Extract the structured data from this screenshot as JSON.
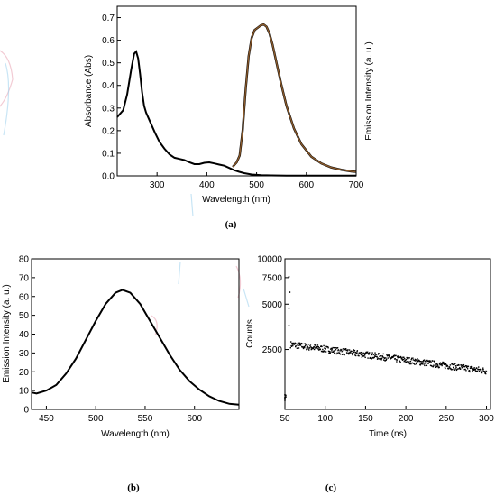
{
  "captions": {
    "a": "(a)",
    "b": "(b)",
    "c": "(c)"
  },
  "colors": {
    "absorbance": "#000000",
    "emission": "#8b5a2b",
    "decay_points": "#000000"
  },
  "chart_data": [
    {
      "id": "a",
      "type": "line",
      "xlabel": "Wavelength (nm)",
      "ylabel": "Absorbance (Abs)",
      "y2label": "Emission Intensity (a. u.)",
      "xlim": [
        220,
        700
      ],
      "ylim": [
        0,
        0.75
      ],
      "xticks": [
        300,
        400,
        500,
        600,
        700
      ],
      "yticks": [
        0.0,
        0.1,
        0.2,
        0.3,
        0.4,
        0.5,
        0.6,
        0.7
      ],
      "series": [
        {
          "axis": "left",
          "x": [
            220,
            232,
            240,
            248,
            254,
            258,
            262,
            266,
            270,
            274,
            278,
            282,
            288,
            296,
            305,
            315,
            325,
            335,
            345,
            355,
            365,
            375,
            385,
            395,
            405,
            415,
            425,
            435,
            445,
            455,
            465,
            475,
            490,
            510,
            530,
            560,
            600,
            640,
            680,
            700
          ],
          "y": [
            0.26,
            0.29,
            0.36,
            0.47,
            0.54,
            0.55,
            0.52,
            0.45,
            0.37,
            0.31,
            0.28,
            0.26,
            0.23,
            0.19,
            0.15,
            0.12,
            0.095,
            0.08,
            0.075,
            0.07,
            0.06,
            0.052,
            0.052,
            0.058,
            0.06,
            0.055,
            0.05,
            0.045,
            0.035,
            0.025,
            0.018,
            0.012,
            0.006,
            0.003,
            0.002,
            0.001,
            0.001,
            0.001,
            0.001,
            0.001
          ]
        },
        {
          "axis": "right",
          "x": [
            452,
            460,
            466,
            472,
            478,
            484,
            490,
            496,
            502,
            508,
            514,
            520,
            526,
            532,
            540,
            550,
            560,
            575,
            590,
            610,
            630,
            650,
            670,
            690,
            700
          ],
          "y": [
            0.04,
            0.06,
            0.09,
            0.2,
            0.38,
            0.53,
            0.61,
            0.645,
            0.655,
            0.665,
            0.67,
            0.66,
            0.63,
            0.58,
            0.5,
            0.4,
            0.31,
            0.21,
            0.14,
            0.085,
            0.055,
            0.037,
            0.027,
            0.02,
            0.018
          ]
        }
      ]
    },
    {
      "id": "b",
      "type": "line",
      "xlabel": "Wavelength (nm)",
      "ylabel": "Emission Intensity (a. u.)",
      "xlim": [
        435,
        645
      ],
      "ylim": [
        0,
        80
      ],
      "xticks": [
        450,
        500,
        550,
        600
      ],
      "yticks": [
        0,
        10,
        20,
        30,
        40,
        50,
        60,
        70,
        80
      ],
      "series": [
        {
          "x": [
            435,
            440,
            450,
            460,
            470,
            480,
            490,
            500,
            510,
            520,
            527,
            535,
            545,
            555,
            565,
            575,
            585,
            595,
            605,
            615,
            625,
            635,
            645
          ],
          "y": [
            9,
            8.5,
            10,
            13,
            19,
            27,
            37,
            47,
            56,
            62,
            63.5,
            62,
            56,
            47,
            38,
            29,
            21,
            15,
            10.5,
            7,
            4.5,
            3,
            2.5
          ]
        }
      ]
    },
    {
      "id": "c",
      "type": "scatter",
      "xlabel": "Time (ns)",
      "ylabel": "Counts",
      "xlim": [
        50,
        305
      ],
      "ylim": [
        1000,
        10000
      ],
      "yscale": "log",
      "xticks": [
        50,
        100,
        150,
        200,
        250,
        300
      ],
      "yticks": [
        2500,
        5000,
        7500,
        10000
      ],
      "series": [
        {
          "trend": {
            "x": [
              57,
              300
            ],
            "y": [
              2700,
              1800
            ]
          },
          "noise_scatter": 0.05,
          "early": {
            "x": [
              50,
              50,
              50,
              50,
              51,
              51,
              55,
              55,
              55,
              56
            ],
            "y": [
              1200,
              1150,
              1250,
              1180,
              1210,
              1240,
              7600,
              4700,
              3600,
              6000
            ]
          }
        }
      ]
    }
  ]
}
